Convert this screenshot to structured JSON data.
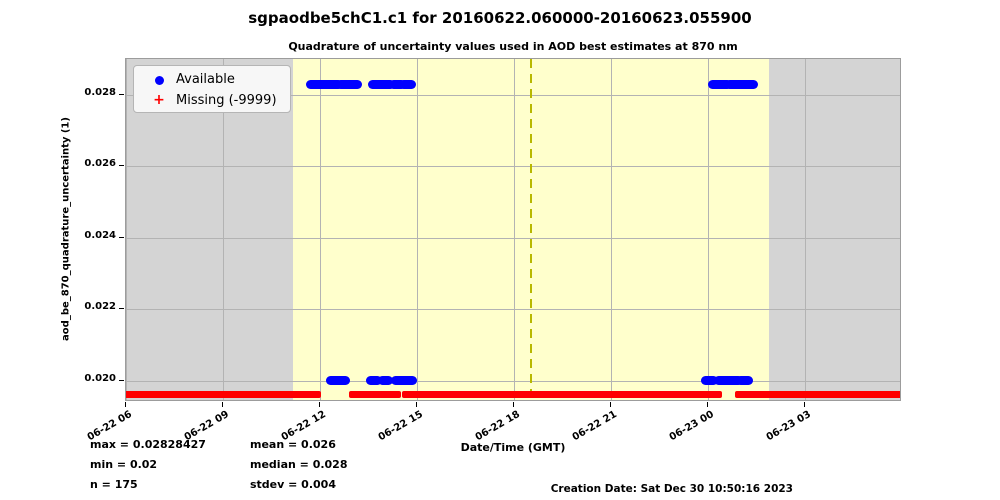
{
  "chart_data": {
    "type": "scatter",
    "title": "sgpaodbe5chC1.c1 for 20160622.060000-20160623.055900",
    "subtitle": "Quadrature of uncertainty values used in AOD best estimates at 870 nm",
    "xlabel": "Date/Time (GMT)",
    "ylabel": "aod_be_870_quadrature_uncertainty (1)",
    "grid": true,
    "x_axis": {
      "start_hour": 6,
      "end_hour": 30,
      "ticks": [
        {
          "hour": 6,
          "label": "06-22 06"
        },
        {
          "hour": 9,
          "label": "06-22 09"
        },
        {
          "hour": 12,
          "label": "06-22 12"
        },
        {
          "hour": 15,
          "label": "06-22 15"
        },
        {
          "hour": 18,
          "label": "06-22 18"
        },
        {
          "hour": 21,
          "label": "06-22 21"
        },
        {
          "hour": 24,
          "label": "06-23 00"
        },
        {
          "hour": 27,
          "label": "06-23 03"
        }
      ]
    },
    "y_axis": {
      "min": 0.0194,
      "max": 0.029,
      "ticks": [
        {
          "value": 0.02,
          "label": "0.020"
        },
        {
          "value": 0.022,
          "label": "0.022"
        },
        {
          "value": 0.024,
          "label": "0.024"
        },
        {
          "value": 0.026,
          "label": "0.026"
        },
        {
          "value": 0.028,
          "label": "0.028"
        }
      ]
    },
    "background": {
      "night_color": "#d4d4d4",
      "daylight_color": "#ffffcc",
      "daylight_start_hour": 11.18,
      "daylight_end_hour": 25.88
    },
    "solar_noon_line": {
      "hour": 18.52,
      "color": "#b8b800",
      "style": "dashed"
    },
    "legend": {
      "position": "upper left",
      "items": [
        {
          "label": "Available",
          "marker": "circle",
          "color": "#0000ff"
        },
        {
          "label": "Missing (-9999)",
          "marker": "plus",
          "color": "#ff0000"
        }
      ]
    },
    "series": [
      {
        "name": "Available",
        "marker": "circle",
        "color": "#0000ff",
        "groups": [
          {
            "value": 0.02828427,
            "time_spans_hours": [
              [
                11.71,
                12.58
              ],
              [
                12.64,
                13.16
              ],
              [
                13.63,
                14.18
              ],
              [
                14.28,
                14.52
              ],
              [
                14.59,
                14.83
              ],
              [
                24.13,
                24.6
              ],
              [
                24.68,
                25.42
              ]
            ]
          },
          {
            "value": 0.02,
            "time_spans_hours": [
              [
                12.33,
                12.79
              ],
              [
                13.57,
                13.78
              ],
              [
                13.94,
                14.12
              ],
              [
                14.34,
                14.86
              ],
              [
                23.93,
                24.17
              ],
              [
                24.33,
                24.95
              ],
              [
                25.01,
                25.26
              ]
            ]
          }
        ]
      },
      {
        "name": "Missing (-9999)",
        "marker": "plus",
        "color": "#ff0000",
        "plotted_value": 0.0196,
        "time_spans_hours": [
          [
            6.0,
            11.92
          ],
          [
            13.0,
            13.82
          ],
          [
            13.93,
            14.39
          ],
          [
            14.65,
            24.33
          ],
          [
            24.95,
            30.0
          ]
        ]
      }
    ],
    "stats": {
      "max": "max = 0.02828427",
      "min": "min = 0.02",
      "n": "n = 175",
      "mean": "mean = 0.026",
      "median": "median = 0.028",
      "stdev": "stdev = 0.004"
    },
    "creation_date": "Creation Date: Sat Dec 30 10:50:16 2023"
  }
}
